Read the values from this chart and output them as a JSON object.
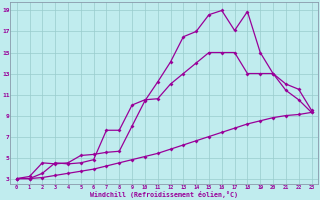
{
  "bg_color": "#c0ecee",
  "line_color": "#990099",
  "grid_color": "#99cccc",
  "xlim_min": -0.5,
  "xlim_max": 23.5,
  "ylim_min": 2.5,
  "ylim_max": 19.8,
  "xticks": [
    0,
    1,
    2,
    3,
    4,
    5,
    6,
    7,
    8,
    9,
    10,
    11,
    12,
    13,
    14,
    15,
    16,
    17,
    18,
    19,
    20,
    21,
    22,
    23
  ],
  "yticks": [
    3,
    5,
    7,
    9,
    11,
    13,
    15,
    17,
    19
  ],
  "xlabel": "Windchill (Refroidissement éolien,°C)",
  "line1_x": [
    0,
    1,
    2,
    3,
    4,
    5,
    6,
    7,
    8,
    9,
    10,
    11,
    12,
    13,
    14,
    15,
    16,
    17,
    18,
    19,
    20,
    21,
    22,
    23
  ],
  "line1_y": [
    3.0,
    3.2,
    4.5,
    4.4,
    4.5,
    5.2,
    5.3,
    5.5,
    5.6,
    8.0,
    10.4,
    12.2,
    14.1,
    16.5,
    17.0,
    18.6,
    19.0,
    17.1,
    18.9,
    15.0,
    13.0,
    11.4,
    10.5,
    9.3
  ],
  "line2_x": [
    0,
    1,
    2,
    3,
    4,
    5,
    6,
    7,
    8,
    9,
    10,
    11,
    12,
    13,
    14,
    15,
    16,
    17,
    18,
    19,
    20,
    21,
    22,
    23
  ],
  "line2_y": [
    3.0,
    3.0,
    3.1,
    3.3,
    3.5,
    3.7,
    3.9,
    4.2,
    4.5,
    4.8,
    5.1,
    5.4,
    5.8,
    6.2,
    6.6,
    7.0,
    7.4,
    7.8,
    8.2,
    8.5,
    8.8,
    9.0,
    9.1,
    9.3
  ],
  "line3_x": [
    0,
    1,
    2,
    3,
    4,
    5,
    6,
    7,
    8,
    9,
    10,
    11,
    12,
    13,
    14,
    15,
    16,
    17,
    18,
    19,
    20,
    21,
    22,
    23
  ],
  "line3_y": [
    3.0,
    3.0,
    3.5,
    4.5,
    4.4,
    4.5,
    4.8,
    7.6,
    7.6,
    10.0,
    10.5,
    10.6,
    12.0,
    13.0,
    14.0,
    15.0,
    15.0,
    15.0,
    13.0,
    13.0,
    13.0,
    12.0,
    11.5,
    9.5
  ]
}
